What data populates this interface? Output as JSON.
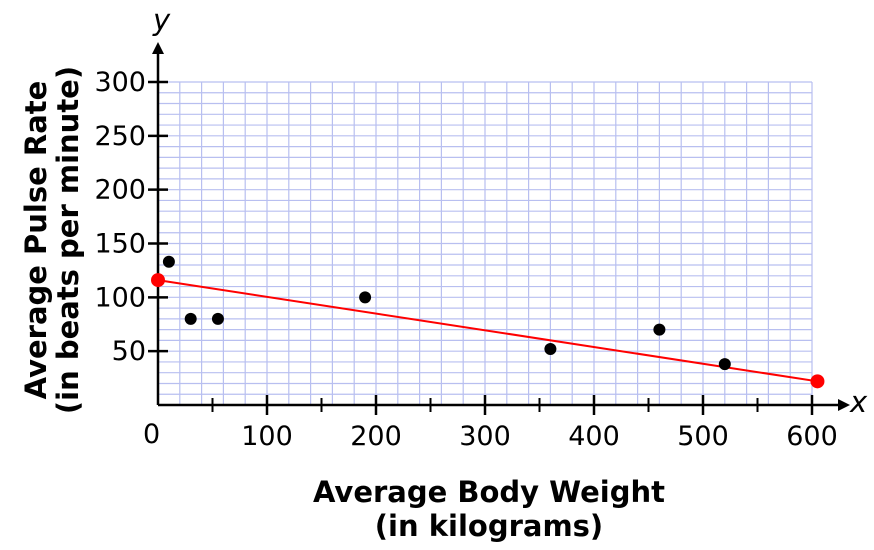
{
  "chart_data": {
    "type": "scatter",
    "xlabel": [
      "Average Body Weight",
      "(in kilograms)"
    ],
    "ylabel": [
      "Average Pulse Rate",
      "(in beats per minute)"
    ],
    "x_axis_letter": "x",
    "y_axis_letter": "y",
    "origin_label": "0",
    "xlim": [
      0,
      600
    ],
    "ylim": [
      0,
      300
    ],
    "x_ticks": [
      100,
      200,
      300,
      400,
      500,
      600
    ],
    "x_tick_labels": [
      "100",
      "200",
      "300",
      "400",
      "500",
      "600"
    ],
    "y_ticks": [
      50,
      100,
      150,
      200,
      250,
      300
    ],
    "y_tick_labels": [
      "50",
      "100",
      "150",
      "200",
      "250",
      "300"
    ],
    "grid": true,
    "grid_minor_step": [
      20,
      10
    ],
    "points": [
      {
        "x": 10,
        "y": 133
      },
      {
        "x": 30,
        "y": 80
      },
      {
        "x": 55,
        "y": 80
      },
      {
        "x": 190,
        "y": 100
      },
      {
        "x": 360,
        "y": 52
      },
      {
        "x": 460,
        "y": 70
      },
      {
        "x": 520,
        "y": 38
      }
    ],
    "trend_line": {
      "start": {
        "x": 0,
        "y": 116
      },
      "end": {
        "x": 605,
        "y": 22
      },
      "color": "#ff0000"
    },
    "colors": {
      "grid": "#b8bff0",
      "points": "#000000",
      "trend": "#ff0000",
      "axes": "#000000"
    }
  }
}
